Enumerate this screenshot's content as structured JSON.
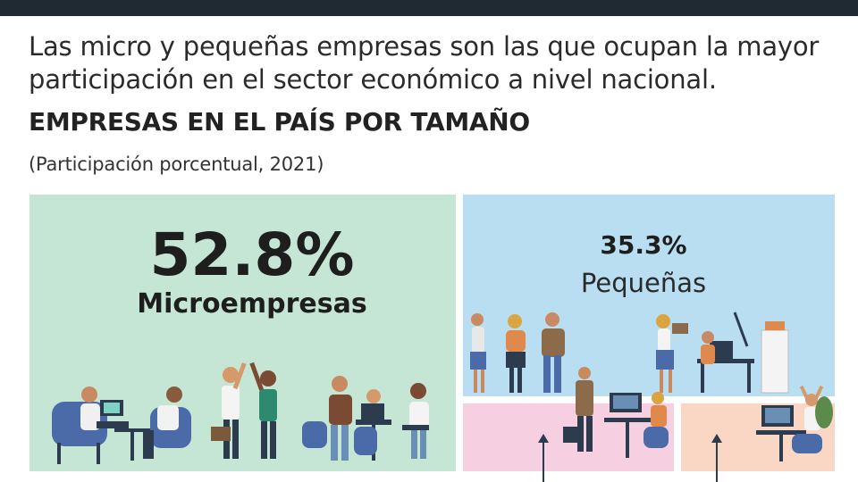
{
  "intro": {
    "line1": "Las micro y pequeñas empresas son las que ocupan la mayor",
    "line2": "participación en el sector económico a nivel nacional."
  },
  "chart_data": {
    "type": "treemap",
    "title": "EMPRESAS EN EL PAÍS POR TAMAÑO",
    "subtitle": "(Participación porcentual, 2021)",
    "items": [
      {
        "label": "Microempresas",
        "value_label": "52.8%",
        "value": 52.8,
        "color": "#c5e6d4"
      },
      {
        "label": "Pequeñas",
        "value_label": "35.3%",
        "value": 35.3,
        "color": "#b9def2"
      },
      {
        "label": "",
        "value_label": "",
        "value": null,
        "color": "#f6cfe1"
      },
      {
        "label": "",
        "value_label": "",
        "value": null,
        "color": "#f9d7c4"
      }
    ]
  },
  "colors": {
    "topbar": "#1f2a33",
    "text": "#2b2b2b",
    "figure_dark": "#2d3b4f",
    "figure_blue": "#6a8fb5",
    "figure_orange": "#e0894d"
  }
}
